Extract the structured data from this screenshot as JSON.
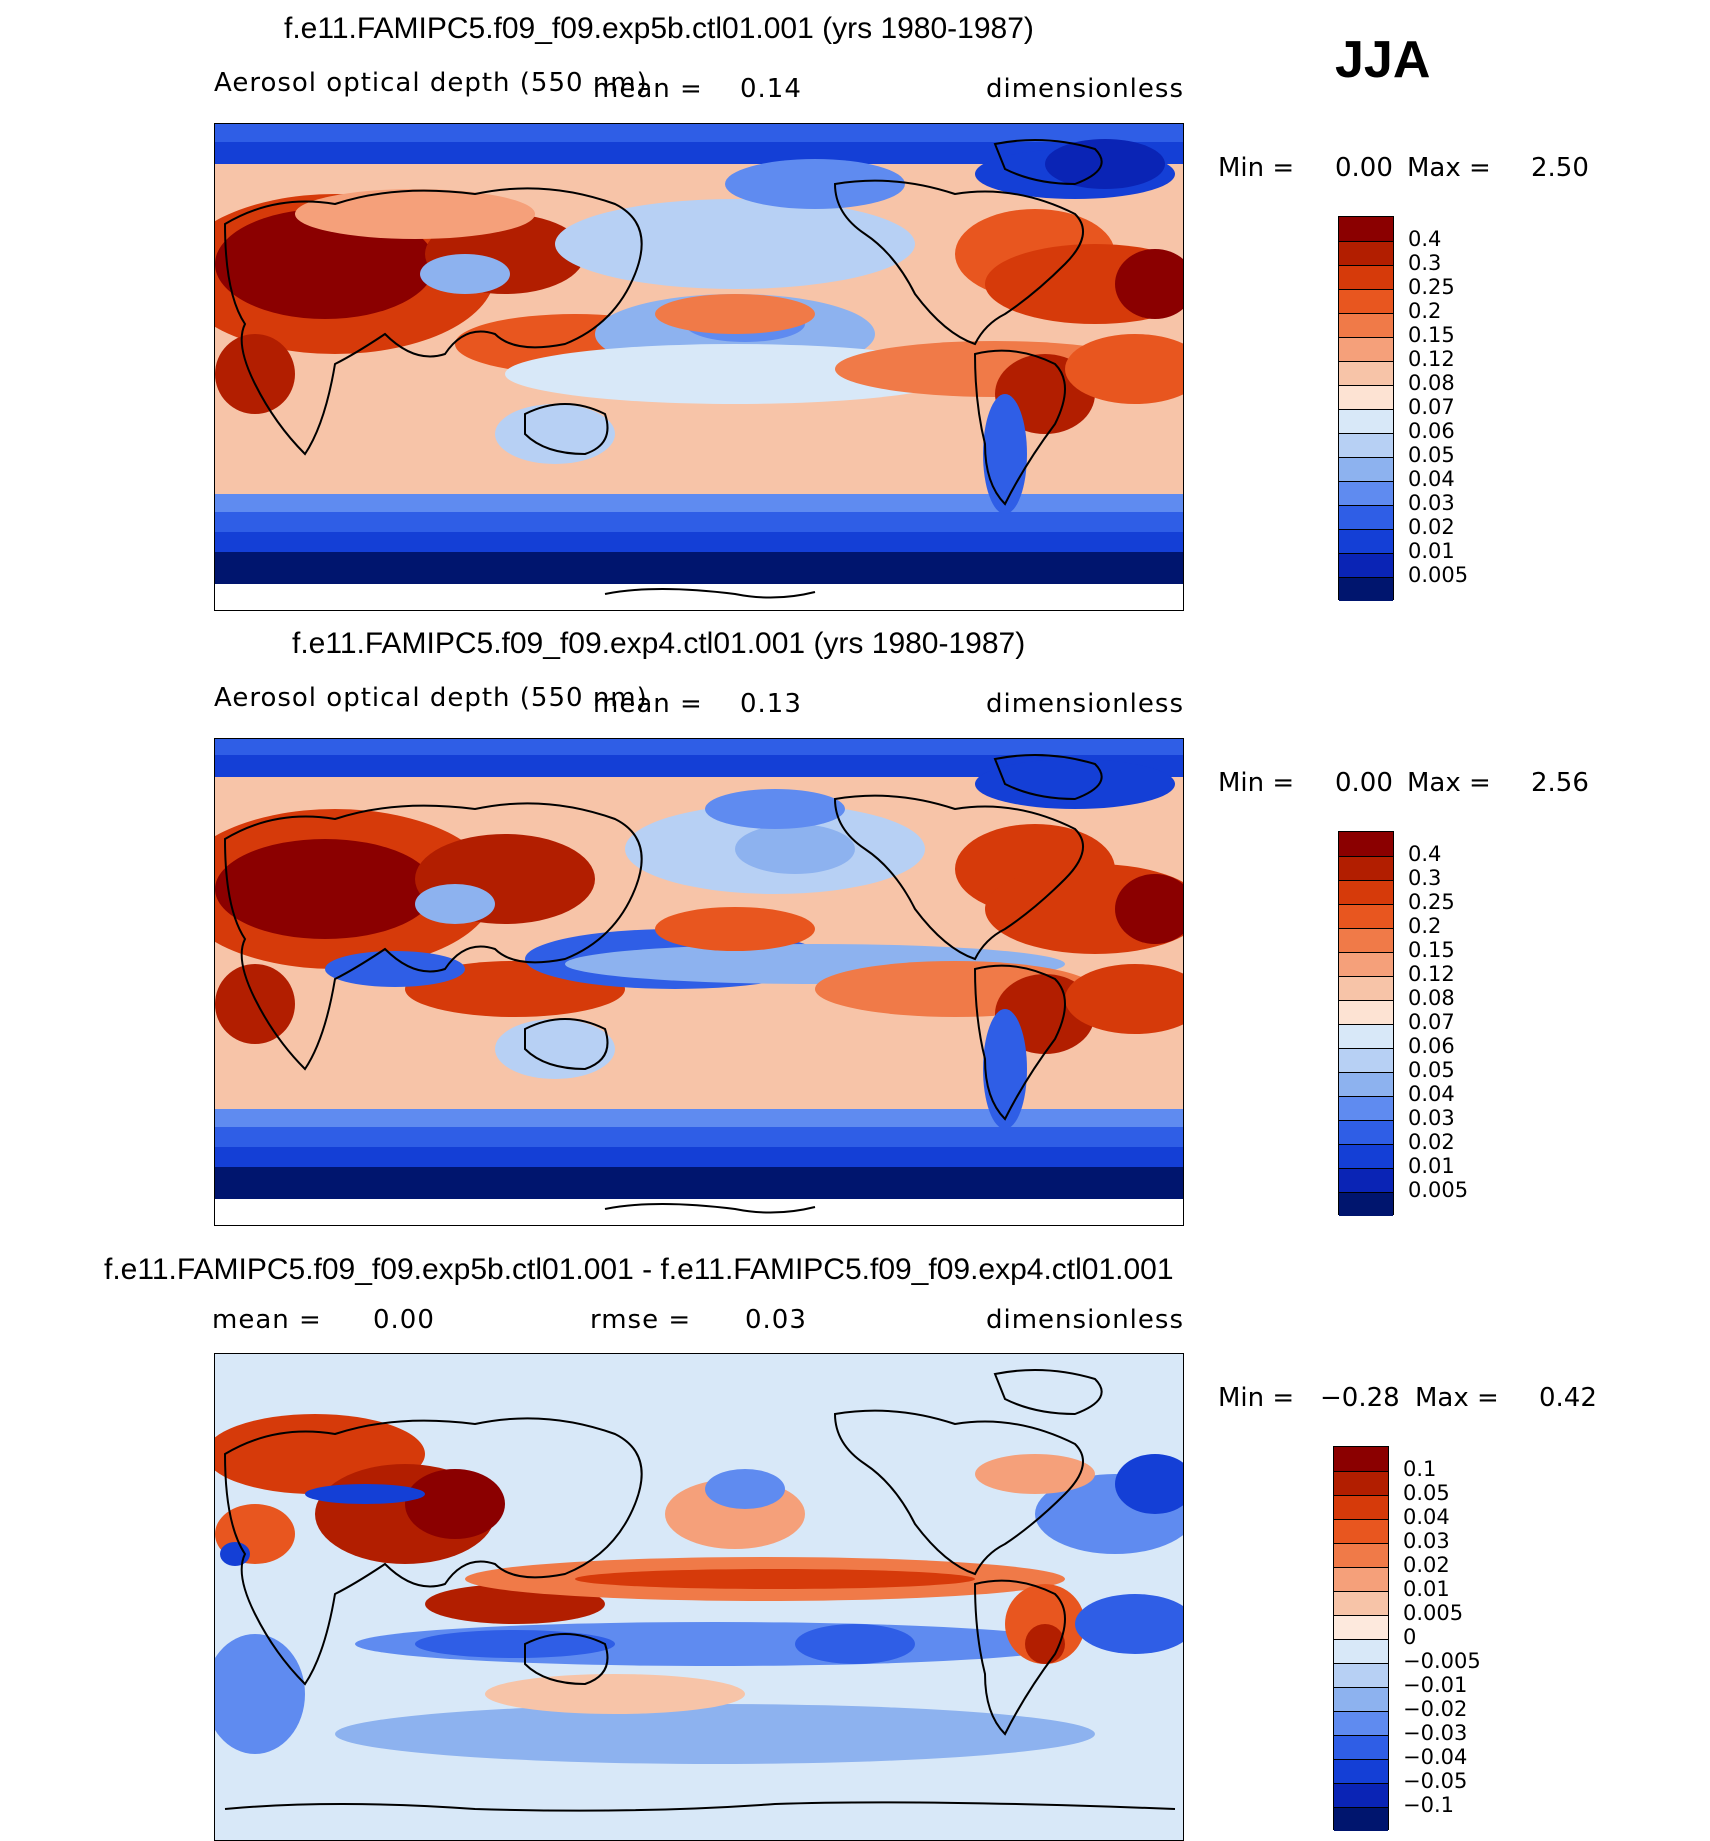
{
  "season": "JJA",
  "panels": [
    {
      "title": "f.e11.FAMIPC5.f09_f09.exp5b.ctl01.001 (yrs 1980-1987)",
      "variable": "Aerosol optical depth (550 nm)",
      "stat1_label": "mean =",
      "stat1_value": "0.14",
      "stat2_label": "",
      "stat2_value": "",
      "units": "dimensionless",
      "min_label": "Min =",
      "min_value": "0.00",
      "max_label": "Max =",
      "max_value": "2.50"
    },
    {
      "title": "f.e11.FAMIPC5.f09_f09.exp4.ctl01.001 (yrs 1980-1987)",
      "variable": "Aerosol optical depth (550 nm)",
      "stat1_label": "mean =",
      "stat1_value": "0.13",
      "stat2_label": "",
      "stat2_value": "",
      "units": "dimensionless",
      "min_label": "Min =",
      "min_value": "0.00",
      "max_label": "Max =",
      "max_value": "2.56"
    },
    {
      "title": "f.e11.FAMIPC5.f09_f09.exp5b.ctl01.001 - f.e11.FAMIPC5.f09_f09.exp4.ctl01.001",
      "variable": "",
      "stat1_label": "mean =",
      "stat1_value": "0.00",
      "stat2_label": "rmse =",
      "stat2_value": "0.03",
      "units": "dimensionless",
      "min_label": "Min =",
      "min_value": "−0.28",
      "max_label": "Max =",
      "max_value": "0.42"
    }
  ],
  "colorbar_levels": [
    "0.4",
    "0.3",
    "0.25",
    "0.2",
    "0.15",
    "0.12",
    "0.08",
    "0.07",
    "0.06",
    "0.05",
    "0.04",
    "0.03",
    "0.02",
    "0.01",
    "0.005"
  ],
  "colorbar_colors": [
    "#8b0000",
    "#b21e00",
    "#d63a0a",
    "#e8561f",
    "#f07a48",
    "#f5a07a",
    "#f7c4a8",
    "#fde3d3",
    "#d8e8f8",
    "#b7d0f4",
    "#8db2ef",
    "#5f8bf0",
    "#2f5ee6",
    "#143fd6",
    "#0a24b5",
    "#00156e"
  ],
  "diff_levels": [
    "0.1",
    "0.05",
    "0.04",
    "0.03",
    "0.02",
    "0.01",
    "0.005",
    "0",
    "−0.005",
    "−0.01",
    "−0.02",
    "−0.03",
    "−0.04",
    "−0.05",
    "−0.1"
  ],
  "diff_colors": [
    "#8b0000",
    "#b21e00",
    "#d63a0a",
    "#e8561f",
    "#f07a48",
    "#f5a07a",
    "#f7c4a8",
    "#fde9dd",
    "#d8e8f8",
    "#b7d0f4",
    "#8db2ef",
    "#5f8bf0",
    "#2f5ee6",
    "#143fd6",
    "#0a24b5",
    "#00156e"
  ]
}
